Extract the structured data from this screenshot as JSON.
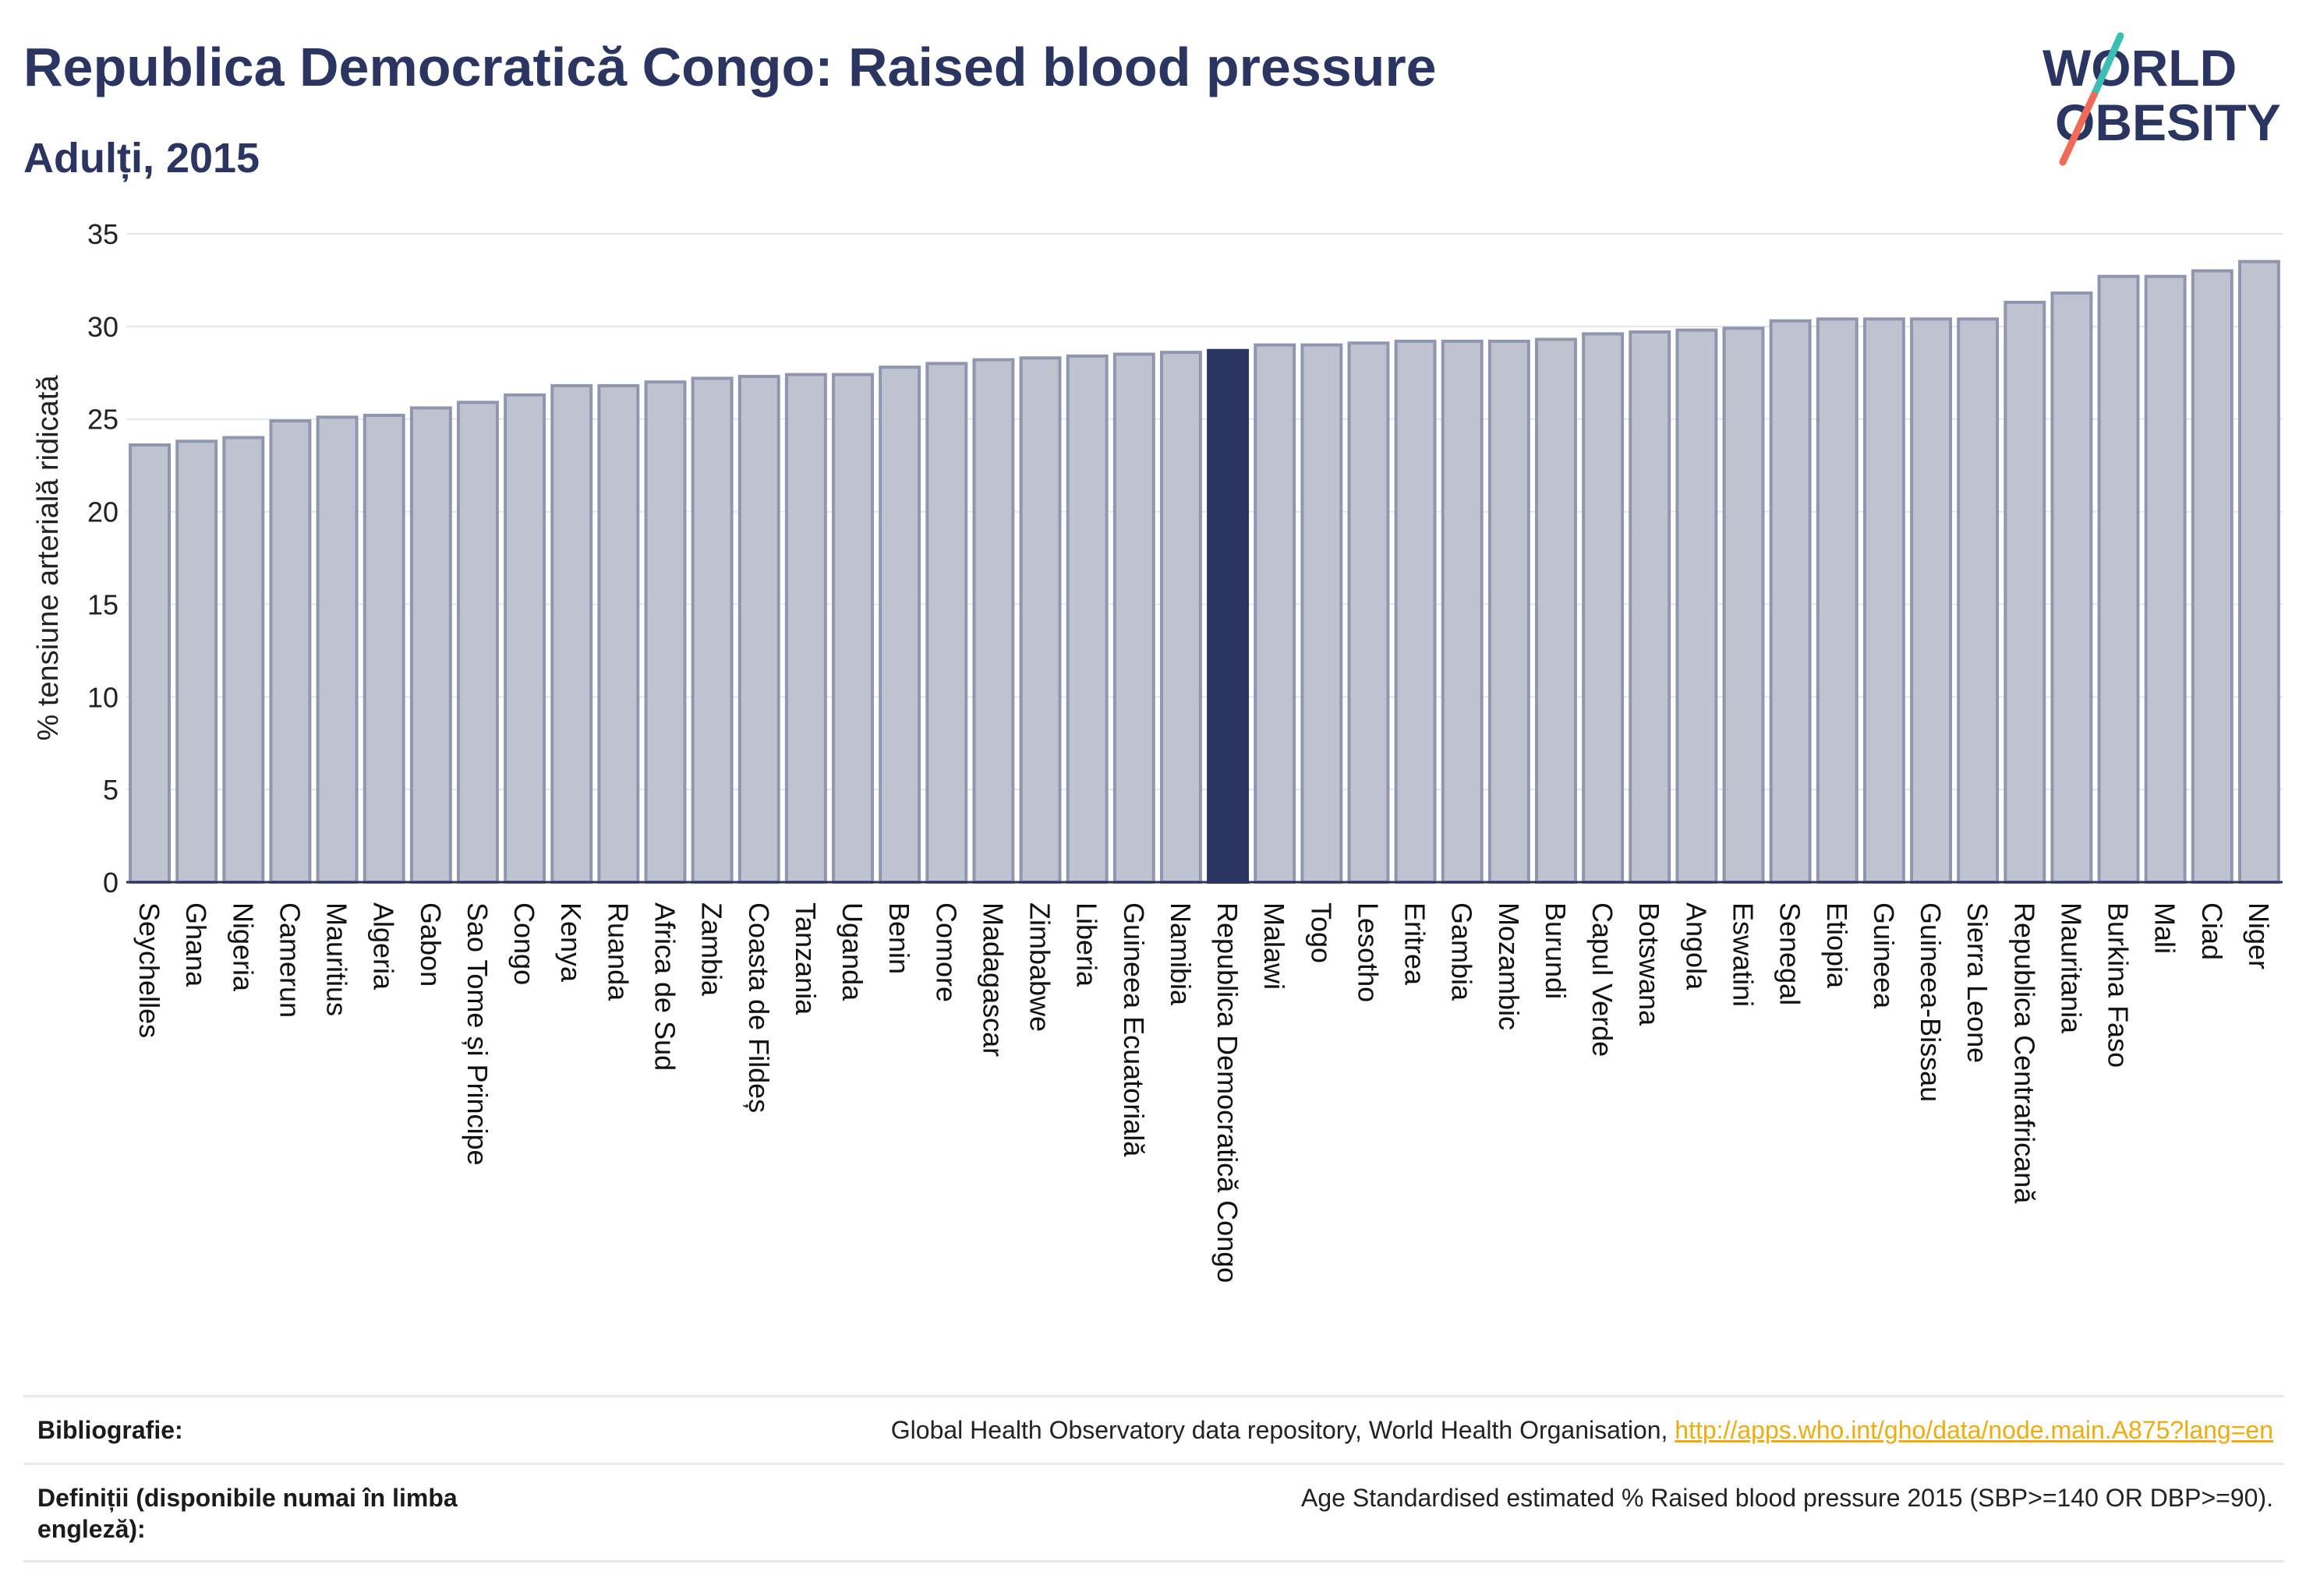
{
  "header": {
    "title": "Republica Democratică Congo: Raised blood pressure",
    "subtitle": "Adulți, 2015"
  },
  "logo": {
    "line1": "WORLD",
    "line2": "OBESITY",
    "accent_teal": "#3bbfb5",
    "accent_coral": "#f06a55"
  },
  "colors": {
    "bar": "#bfc3d0",
    "bar_stroke": "#9096b0",
    "highlight": "#2a3561",
    "text": "#2a3561",
    "grid": "#e4e6ee"
  },
  "chart_data": {
    "type": "bar",
    "ylabel": "% tensiune arterială ridicată",
    "ylim": [
      0,
      35
    ],
    "yticks": [
      0,
      5,
      10,
      15,
      20,
      25,
      30,
      35
    ],
    "grid": true,
    "highlight": "Republica Democratică Congo",
    "categories": [
      "Seychelles",
      "Ghana",
      "Nigeria",
      "Camerun",
      "Mauritius",
      "Algeria",
      "Gabon",
      "Sao Tome și Principe",
      "Congo",
      "Kenya",
      "Ruanda",
      "Africa de Sud",
      "Zambia",
      "Coasta de Fildeș",
      "Tanzania",
      "Uganda",
      "Benin",
      "Comore",
      "Madagascar",
      "Zimbabwe",
      "Liberia",
      "Guineea Ecuatorială",
      "Namibia",
      "Republica Democratică Congo",
      "Malawi",
      "Togo",
      "Lesotho",
      "Eritrea",
      "Gambia",
      "Mozambic",
      "Burundi",
      "Capul Verde",
      "Botswana",
      "Angola",
      "Eswatini",
      "Senegal",
      "Etiopia",
      "Guineea",
      "Guineea-Bissau",
      "Sierra Leone",
      "Republica Centrafricană",
      "Mauritania",
      "Burkina Faso",
      "Mali",
      "Ciad",
      "Niger"
    ],
    "values": [
      23.6,
      23.8,
      24.0,
      24.9,
      25.1,
      25.2,
      25.6,
      25.9,
      26.3,
      26.8,
      26.8,
      27.0,
      27.2,
      27.3,
      27.4,
      27.4,
      27.8,
      28.0,
      28.2,
      28.3,
      28.4,
      28.5,
      28.6,
      28.7,
      29.0,
      29.0,
      29.1,
      29.2,
      29.2,
      29.2,
      29.3,
      29.6,
      29.7,
      29.8,
      29.9,
      30.3,
      30.4,
      30.4,
      30.4,
      30.4,
      31.3,
      31.8,
      32.7,
      32.7,
      33.0,
      33.5
    ]
  },
  "footer": {
    "bib_label": "Bibliografie:",
    "bib_text": "Global Health Observatory data repository, World Health Organisation, ",
    "bib_link": "http://apps.who.int/gho/data/node.main.A875?lang=en",
    "def_label": "Definiții (disponibile numai în limba engleză):",
    "def_text": "Age Standardised estimated % Raised blood pressure 2015 (SBP>=140 OR DBP>=90)."
  }
}
